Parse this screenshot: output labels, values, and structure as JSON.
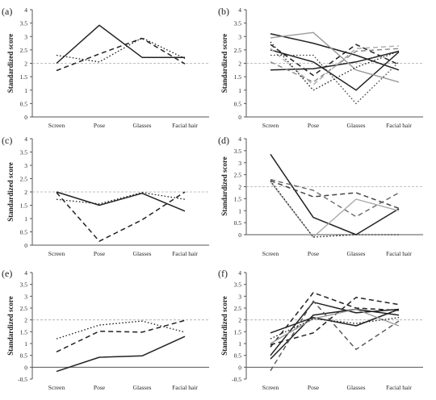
{
  "chart_data": [
    {
      "panel_label": "(a)",
      "type": "line",
      "ylabel": "Standardized score",
      "categories": [
        "Screen",
        "Pose",
        "Glasses",
        "Facial hair"
      ],
      "yticks": [
        "0",
        "0.5",
        "1",
        "1.5",
        "2",
        "2.5",
        "3",
        "3.5",
        "4"
      ],
      "ylim": [
        0,
        4
      ],
      "reference_line": 2,
      "series": [
        {
          "style": "solid",
          "color": "#222222",
          "width": 1.5,
          "values": [
            2.0,
            3.42,
            2.22,
            2.22
          ]
        },
        {
          "style": "dashed",
          "color": "#222222",
          "width": 1.5,
          "values": [
            1.73,
            2.35,
            2.93,
            1.98
          ]
        },
        {
          "style": "dotted",
          "color": "#222222",
          "width": 1.3,
          "values": [
            2.3,
            2.05,
            2.95,
            2.18
          ]
        }
      ]
    },
    {
      "panel_label": "(b)",
      "type": "line",
      "ylabel": "Standardized score",
      "categories": [
        "Screen",
        "Pose",
        "Glasses",
        "Facial hair"
      ],
      "yticks": [
        "0",
        "0.5",
        "1",
        "1.5",
        "2",
        "2.5",
        "3",
        "3.5",
        "4"
      ],
      "ylim": [
        0,
        4
      ],
      "reference_line": 2,
      "series": [
        {
          "style": "solid",
          "color": "#222222",
          "width": 1.5,
          "values": [
            3.1,
            2.75,
            2.3,
            1.75
          ]
        },
        {
          "style": "solid",
          "color": "#222222",
          "width": 1.5,
          "values": [
            2.5,
            2.05,
            1.0,
            2.42
          ]
        },
        {
          "style": "solid",
          "color": "#222222",
          "width": 1.5,
          "values": [
            1.75,
            1.8,
            2.05,
            2.45
          ]
        },
        {
          "style": "dashed",
          "color": "#222222",
          "width": 1.5,
          "values": [
            2.7,
            1.55,
            2.7,
            1.95
          ]
        },
        {
          "style": "solid",
          "color": "#9a9a9a",
          "width": 1.4,
          "values": [
            2.95,
            3.15,
            1.75,
            1.3
          ]
        },
        {
          "style": "dashed",
          "color": "#888888",
          "width": 1.4,
          "values": [
            2.05,
            1.3,
            2.45,
            2.55
          ]
        },
        {
          "style": "dashed",
          "color": "#aaaaaa",
          "width": 1.4,
          "values": [
            2.55,
            1.2,
            2.55,
            2.65
          ]
        },
        {
          "style": "dotted",
          "color": "#222222",
          "width": 1.3,
          "values": [
            2.8,
            1.0,
            1.85,
            2.45
          ]
        },
        {
          "style": "dotted",
          "color": "#444444",
          "width": 1.3,
          "values": [
            2.3,
            2.3,
            0.5,
            2.05
          ]
        }
      ]
    },
    {
      "panel_label": "(c)",
      "type": "line",
      "ylabel": "Standardized score",
      "categories": [
        "Screen",
        "Pose",
        "Glasses",
        "Facial hair"
      ],
      "yticks": [
        "0",
        "0.5",
        "1",
        "1.5",
        "2",
        "2.5",
        "3",
        "3.5",
        "4"
      ],
      "ylim": [
        0,
        4
      ],
      "reference_line": 2,
      "series": [
        {
          "style": "solid",
          "color": "#222222",
          "width": 1.5,
          "values": [
            2.0,
            1.5,
            1.95,
            1.28
          ]
        },
        {
          "style": "dashed",
          "color": "#222222",
          "width": 1.5,
          "values": [
            1.98,
            0.15,
            0.95,
            2.0
          ]
        },
        {
          "style": "dotted",
          "color": "#222222",
          "width": 1.3,
          "values": [
            1.72,
            1.55,
            1.98,
            1.72
          ]
        }
      ]
    },
    {
      "panel_label": "(d)",
      "type": "line",
      "ylabel": "Standardized score",
      "categories": [
        "Screen",
        "Pose",
        "Glasses",
        "Facial hair"
      ],
      "yticks": [
        "0",
        "0.5",
        "1",
        "1.5",
        "2",
        "2.5",
        "3",
        "3.5",
        "4"
      ],
      "ylim": [
        0,
        4
      ],
      "reference_line": 2,
      "series": [
        {
          "style": "solid",
          "color": "#222222",
          "width": 1.5,
          "values": [
            3.35,
            0.72,
            0.0,
            1.08
          ]
        },
        {
          "style": "dashed",
          "color": "#444444",
          "width": 1.5,
          "values": [
            2.25,
            1.58,
            1.75,
            1.1
          ]
        },
        {
          "style": "dashed",
          "color": "#666666",
          "width": 1.4,
          "values": [
            2.3,
            1.85,
            0.75,
            1.75
          ]
        },
        {
          "style": "solid",
          "color": "#aaaaaa",
          "width": 1.4,
          "values": [
            2.2,
            -0.1,
            1.48,
            1.0
          ]
        },
        {
          "style": "dotted",
          "color": "#222222",
          "width": 1.3,
          "values": [
            2.25,
            -0.1,
            0.0,
            0.0
          ]
        }
      ]
    },
    {
      "panel_label": "(e)",
      "type": "line",
      "ylabel": "Standardized score",
      "categories": [
        "Screen",
        "Pose",
        "Glasses",
        "Facial hair"
      ],
      "yticks": [
        "-0.5",
        "0",
        "0.5",
        "1",
        "1.5",
        "2",
        "2.5",
        "3",
        "3.5",
        "4"
      ],
      "ylim": [
        -0.5,
        4
      ],
      "reference_line": 2,
      "series": [
        {
          "style": "solid",
          "color": "#222222",
          "width": 1.5,
          "values": [
            -0.18,
            0.42,
            0.48,
            1.3
          ]
        },
        {
          "style": "dashed",
          "color": "#222222",
          "width": 1.5,
          "values": [
            0.65,
            1.52,
            1.48,
            1.98
          ]
        },
        {
          "style": "dotted",
          "color": "#222222",
          "width": 1.3,
          "values": [
            1.2,
            1.78,
            1.95,
            1.48
          ]
        }
      ]
    },
    {
      "panel_label": "(f)",
      "type": "line",
      "ylabel": "Standardized score",
      "categories": [
        "Screen",
        "Pose",
        "Glasses",
        "Facial hair"
      ],
      "yticks": [
        "-0.5",
        "0",
        "0.5",
        "1",
        "1.5",
        "2",
        "2.5",
        "3",
        "3.5",
        "4"
      ],
      "ylim": [
        -0.5,
        4
      ],
      "reference_line": 2,
      "series": [
        {
          "style": "solid",
          "color": "#222222",
          "width": 1.5,
          "values": [
            1.45,
            2.1,
            1.75,
            2.45
          ]
        },
        {
          "style": "solid",
          "color": "#222222",
          "width": 1.5,
          "values": [
            0.5,
            2.75,
            2.3,
            2.45
          ]
        },
        {
          "style": "solid",
          "color": "#222222",
          "width": 1.5,
          "values": [
            0.35,
            2.2,
            2.45,
            2.2
          ]
        },
        {
          "style": "dashed",
          "color": "#222222",
          "width": 1.5,
          "values": [
            0.85,
            3.15,
            2.5,
            2.4
          ]
        },
        {
          "style": "dashed",
          "color": "#222222",
          "width": 1.5,
          "values": [
            0.95,
            1.45,
            2.95,
            2.65
          ]
        },
        {
          "style": "dashed",
          "color": "#555555",
          "width": 1.4,
          "values": [
            -0.15,
            2.8,
            0.75,
            1.95
          ]
        },
        {
          "style": "solid",
          "color": "#999999",
          "width": 1.4,
          "values": [
            1.0,
            2.05,
            2.45,
            1.75
          ]
        },
        {
          "style": "dotted",
          "color": "#222222",
          "width": 1.3,
          "values": [
            1.2,
            2.05,
            1.85,
            2.1
          ]
        }
      ]
    }
  ]
}
